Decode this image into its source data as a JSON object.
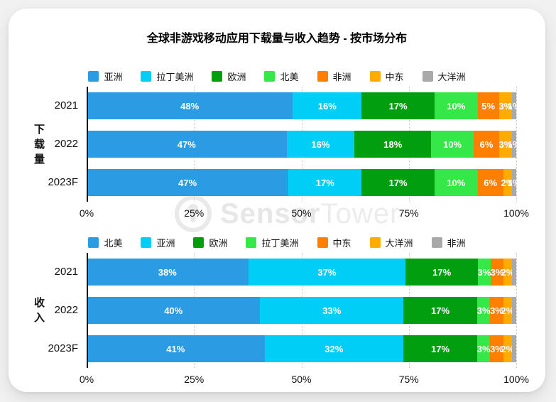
{
  "title": "全球非游戏移动应用下载量与收入趋势 - 按市场分布",
  "watermark": {
    "bold": "Sensor",
    "light": "Tower"
  },
  "chart_data": [
    {
      "type": "bar",
      "stacked": true,
      "orientation": "horizontal",
      "group_label": "下载量",
      "categories": [
        "2021",
        "2022",
        "2023F"
      ],
      "xlim": [
        0,
        100
      ],
      "x_ticks": [
        "0%",
        "25%",
        "50%",
        "75%",
        "100%"
      ],
      "grid": "dotted-vertical",
      "legend_position": "top",
      "series": [
        {
          "name": "亚洲",
          "color": "#2B9BE3",
          "values": [
            48,
            47,
            47
          ],
          "show_labels": true
        },
        {
          "name": "拉丁美洲",
          "color": "#00CEF6",
          "values": [
            16,
            16,
            17
          ],
          "show_labels": true
        },
        {
          "name": "欧洲",
          "color": "#019F10",
          "values": [
            17,
            18,
            17
          ],
          "show_labels": true
        },
        {
          "name": "北美",
          "color": "#36E748",
          "values": [
            10,
            10,
            10
          ],
          "show_labels": true
        },
        {
          "name": "非洲",
          "color": "#FF8000",
          "values": [
            5,
            6,
            6
          ],
          "show_labels": true
        },
        {
          "name": "中东",
          "color": "#FFAB00",
          "values": [
            3,
            3,
            2
          ],
          "show_labels": true
        },
        {
          "name": "大洋洲",
          "color": "#A9A9A9",
          "values": [
            1,
            1,
            1
          ],
          "show_labels": true
        }
      ]
    },
    {
      "type": "bar",
      "stacked": true,
      "orientation": "horizontal",
      "group_label": "收入",
      "categories": [
        "2021",
        "2022",
        "2023F"
      ],
      "xlim": [
        0,
        100
      ],
      "x_ticks": [
        "0%",
        "25%",
        "50%",
        "75%",
        "100%"
      ],
      "grid": "dotted-vertical",
      "legend_position": "top",
      "series": [
        {
          "name": "北美",
          "color": "#2B9BE3",
          "values": [
            38,
            40,
            41
          ],
          "show_labels": true
        },
        {
          "name": "亚洲",
          "color": "#00CEF6",
          "values": [
            37,
            33,
            32
          ],
          "show_labels": true
        },
        {
          "name": "欧洲",
          "color": "#019F10",
          "values": [
            17,
            17,
            17
          ],
          "show_labels": true
        },
        {
          "name": "拉丁美洲",
          "color": "#36E748",
          "values": [
            3,
            3,
            3
          ],
          "show_labels": true
        },
        {
          "name": "中东",
          "color": "#FF8000",
          "values": [
            3,
            3,
            3
          ],
          "show_labels": true
        },
        {
          "name": "大洋洲",
          "color": "#FFAB00",
          "values": [
            2,
            2,
            2
          ],
          "show_labels": true
        },
        {
          "name": "非洲",
          "color": "#A9A9A9",
          "values": [
            1,
            1,
            1
          ],
          "show_labels": false
        }
      ]
    }
  ]
}
